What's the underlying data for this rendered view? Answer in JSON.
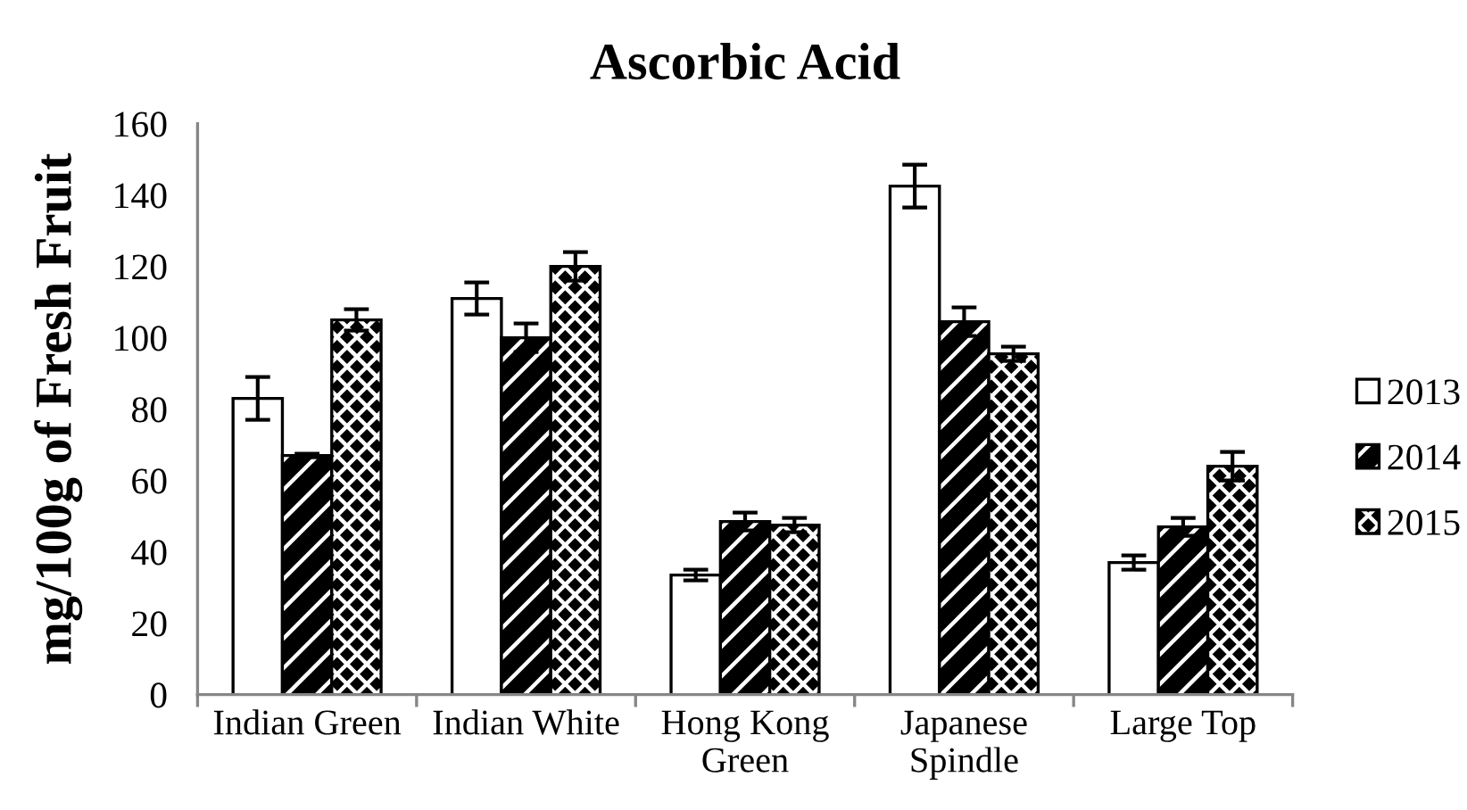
{
  "chart_data": {
    "type": "bar",
    "title": "Ascorbic Acid",
    "ylabel": "mg/100g of Fresh Fruit",
    "categories": [
      "Indian Green",
      "Indian White",
      "Hong Kong\nGreen",
      "Japanese\nSpindle",
      "Large Top"
    ],
    "series": [
      {
        "name": "2013",
        "color": "#ffffff",
        "values": [
          83,
          111,
          33.5,
          142.5,
          37
        ],
        "errors": [
          6,
          4.5,
          1.5,
          6,
          2
        ]
      },
      {
        "name": "2014",
        "color": "#000000",
        "values": [
          67,
          100,
          48.5,
          104.5,
          47
        ],
        "errors": [
          0.5,
          4,
          2.5,
          4,
          2.5
        ]
      },
      {
        "name": "2015",
        "color": "#000000",
        "values": [
          105,
          120,
          47.5,
          95.5,
          64
        ],
        "errors": [
          3,
          4,
          2,
          2,
          4
        ]
      }
    ],
    "ylim": [
      0,
      160
    ],
    "yticks": [
      0,
      20,
      40,
      60,
      80,
      100,
      120,
      140,
      160
    ],
    "grid": false,
    "legend": "right"
  }
}
